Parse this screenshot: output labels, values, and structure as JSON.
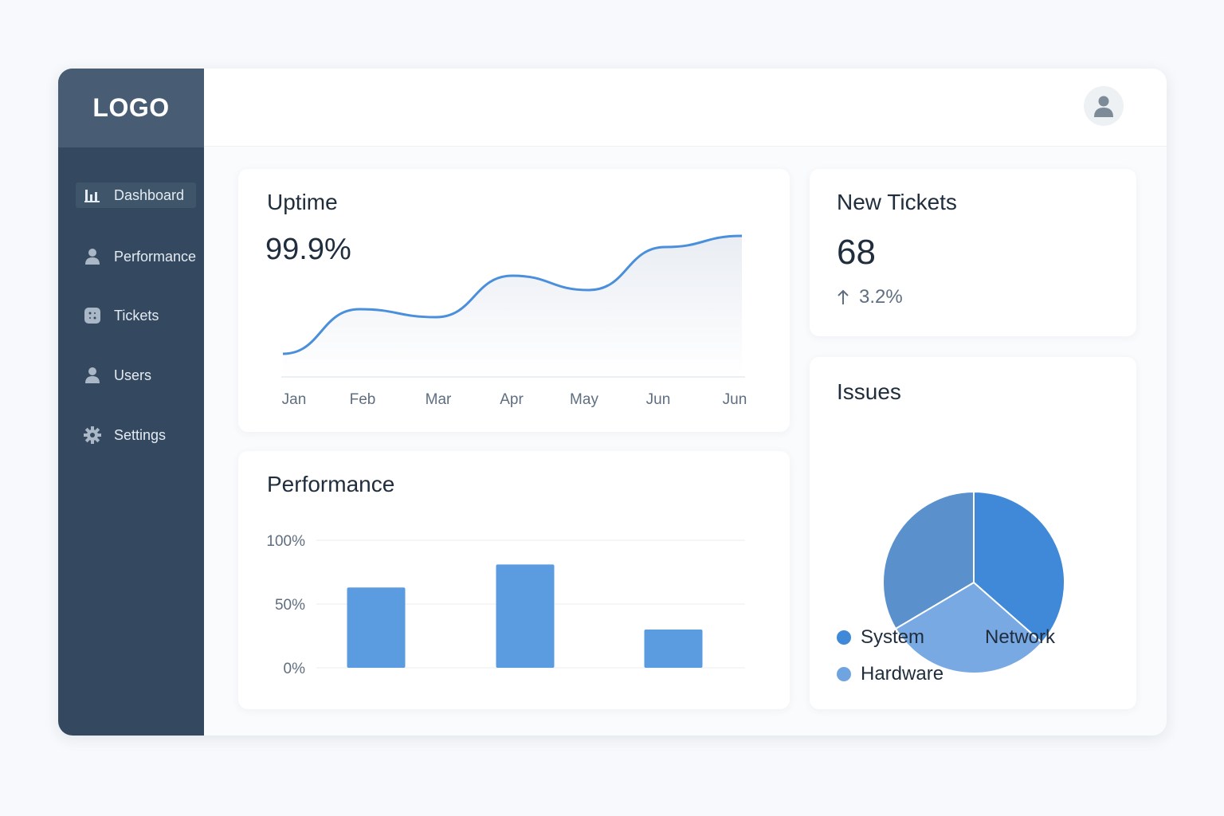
{
  "sidebar": {
    "logo": "LOGO",
    "items": [
      {
        "label": "Dashboard",
        "icon": "bar-chart-icon",
        "active": true
      },
      {
        "label": "Performance",
        "icon": "user-icon",
        "active": false
      },
      {
        "label": "Tickets",
        "icon": "ticket-icon",
        "active": false
      },
      {
        "label": "Users",
        "icon": "user-icon",
        "active": false
      },
      {
        "label": "Settings",
        "icon": "gear-icon",
        "active": false
      }
    ]
  },
  "header": {
    "avatar_icon": "user-avatar-icon"
  },
  "uptime": {
    "title": "Uptime",
    "value": "99.9%"
  },
  "tickets": {
    "title": "New Tickets",
    "value": "68",
    "change": "3.2%",
    "change_icon": "arrow-up-icon"
  },
  "performance": {
    "title": "Performance"
  },
  "issues": {
    "title": "Issues"
  },
  "colors": {
    "sidebar": "#34495f",
    "logo_bg": "#485d74",
    "accent": "#4a8fdc",
    "bar": "#5b9be0",
    "pie_system": "#3f89d8",
    "pie_network": "#78a9e3",
    "pie_hardware": "#5a91cd"
  },
  "chart_data": [
    {
      "type": "line",
      "x": [
        "Jan",
        "Feb",
        "Mar",
        "Apr",
        "May",
        "Jun",
        "Jun"
      ],
      "values": [
        15,
        43,
        38,
        64,
        55,
        82,
        89
      ],
      "ylim": [
        0,
        100
      ],
      "title": "",
      "xlabel": "",
      "ylabel": "",
      "grid": false
    },
    {
      "type": "bar",
      "categories": [
        "",
        "",
        ""
      ],
      "values": [
        63,
        81,
        30
      ],
      "yticks": [
        "100%",
        "50%",
        "0%"
      ],
      "ylim": [
        0,
        100
      ],
      "grid": true
    },
    {
      "type": "pie",
      "series": [
        {
          "name": "System",
          "value": 36.5
        },
        {
          "name": "Network",
          "value": 30
        },
        {
          "name": "Hardware",
          "value": 33.5
        }
      ],
      "legend": "bottom"
    }
  ]
}
